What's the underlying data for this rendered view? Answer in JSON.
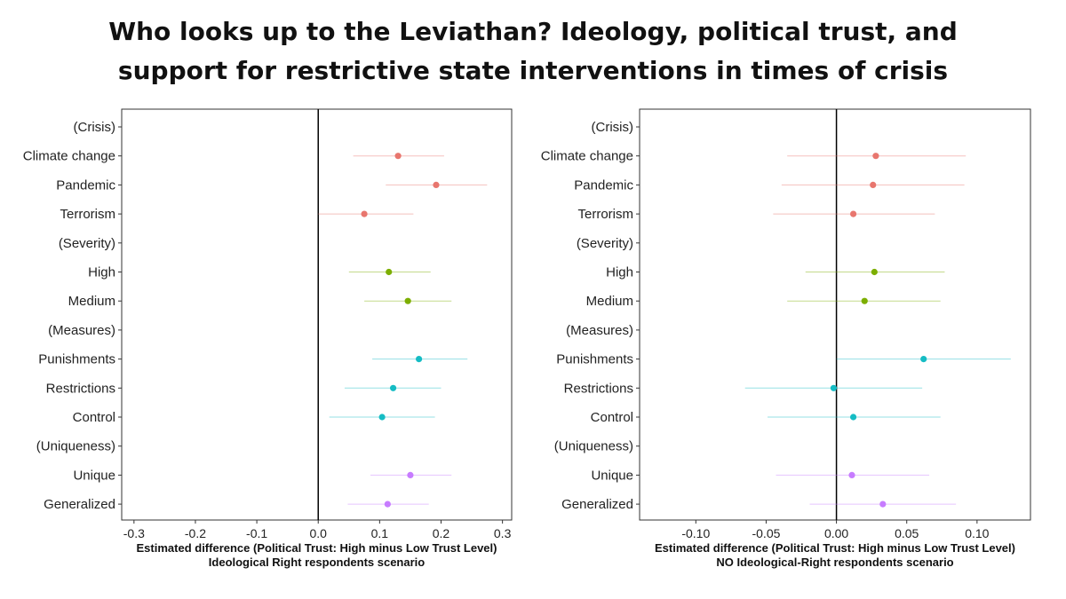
{
  "title_line1": "Who looks up to the Leviathan? Ideology, political trust, and",
  "title_line2": "support for restrictive state interventions in times of crisis",
  "colors": {
    "crisis": "#e8766e",
    "severity": "#7cae00",
    "measures": "#15bcc4",
    "uniqueness": "#c77cff"
  },
  "categories": [
    "(Crisis)",
    "Climate change",
    "Pandemic",
    "Terrorism",
    "(Severity)",
    "High",
    "Medium",
    "(Measures)",
    "Punishments",
    "Restrictions",
    "Control",
    "(Uniqueness)",
    "Unique",
    "Generalized"
  ],
  "groups": [
    "",
    "crisis",
    "crisis",
    "crisis",
    "",
    "severity",
    "severity",
    "",
    "measures",
    "measures",
    "measures",
    "",
    "uniqueness",
    "uniqueness"
  ],
  "chart_data": [
    {
      "type": "scatter",
      "subtype": "coefficient-plot",
      "xlabel": "Estimated difference (Political Trust: High minus Low Trust Level)",
      "xlabel2": "Ideological Right respondents scenario",
      "xlim": [
        -0.32,
        0.315
      ],
      "xticks": [
        -0.3,
        -0.2,
        -0.1,
        0.0,
        0.1,
        0.2,
        0.3
      ],
      "xtick_labels": [
        "-0.3",
        "-0.2",
        "-0.1",
        "0.0",
        "0.1",
        "0.2",
        "0.3"
      ],
      "reference_line": 0,
      "estimates": [
        null,
        0.13,
        0.192,
        0.075,
        null,
        0.115,
        0.146,
        null,
        0.164,
        0.122,
        0.104,
        null,
        0.15,
        0.113
      ],
      "lower": [
        null,
        0.057,
        0.11,
        0.0,
        null,
        0.05,
        0.075,
        null,
        0.088,
        0.043,
        0.018,
        null,
        0.085,
        0.048
      ],
      "upper": [
        null,
        0.205,
        0.275,
        0.155,
        null,
        0.183,
        0.217,
        null,
        0.243,
        0.2,
        0.19,
        null,
        0.217,
        0.18
      ]
    },
    {
      "type": "scatter",
      "subtype": "coefficient-plot",
      "xlabel": "Estimated difference (Political Trust: High minus Low Trust Level)",
      "xlabel2": "NO Ideological-Right respondents scenario",
      "xlim": [
        -0.14,
        0.138
      ],
      "xticks": [
        -0.1,
        -0.05,
        0.0,
        0.05,
        0.1
      ],
      "xtick_labels": [
        "-0.10",
        "-0.05",
        "0.00",
        "0.05",
        "0.10"
      ],
      "reference_line": 0,
      "estimates": [
        null,
        0.028,
        0.026,
        0.012,
        null,
        0.027,
        0.02,
        null,
        0.062,
        -0.002,
        0.012,
        null,
        0.011,
        0.033
      ],
      "lower": [
        null,
        -0.035,
        -0.039,
        -0.045,
        null,
        -0.022,
        -0.035,
        null,
        0.0,
        -0.065,
        -0.049,
        null,
        -0.043,
        -0.019
      ],
      "upper": [
        null,
        0.092,
        0.091,
        0.07,
        null,
        0.077,
        0.074,
        null,
        0.124,
        0.061,
        0.074,
        null,
        0.066,
        0.085
      ]
    }
  ]
}
